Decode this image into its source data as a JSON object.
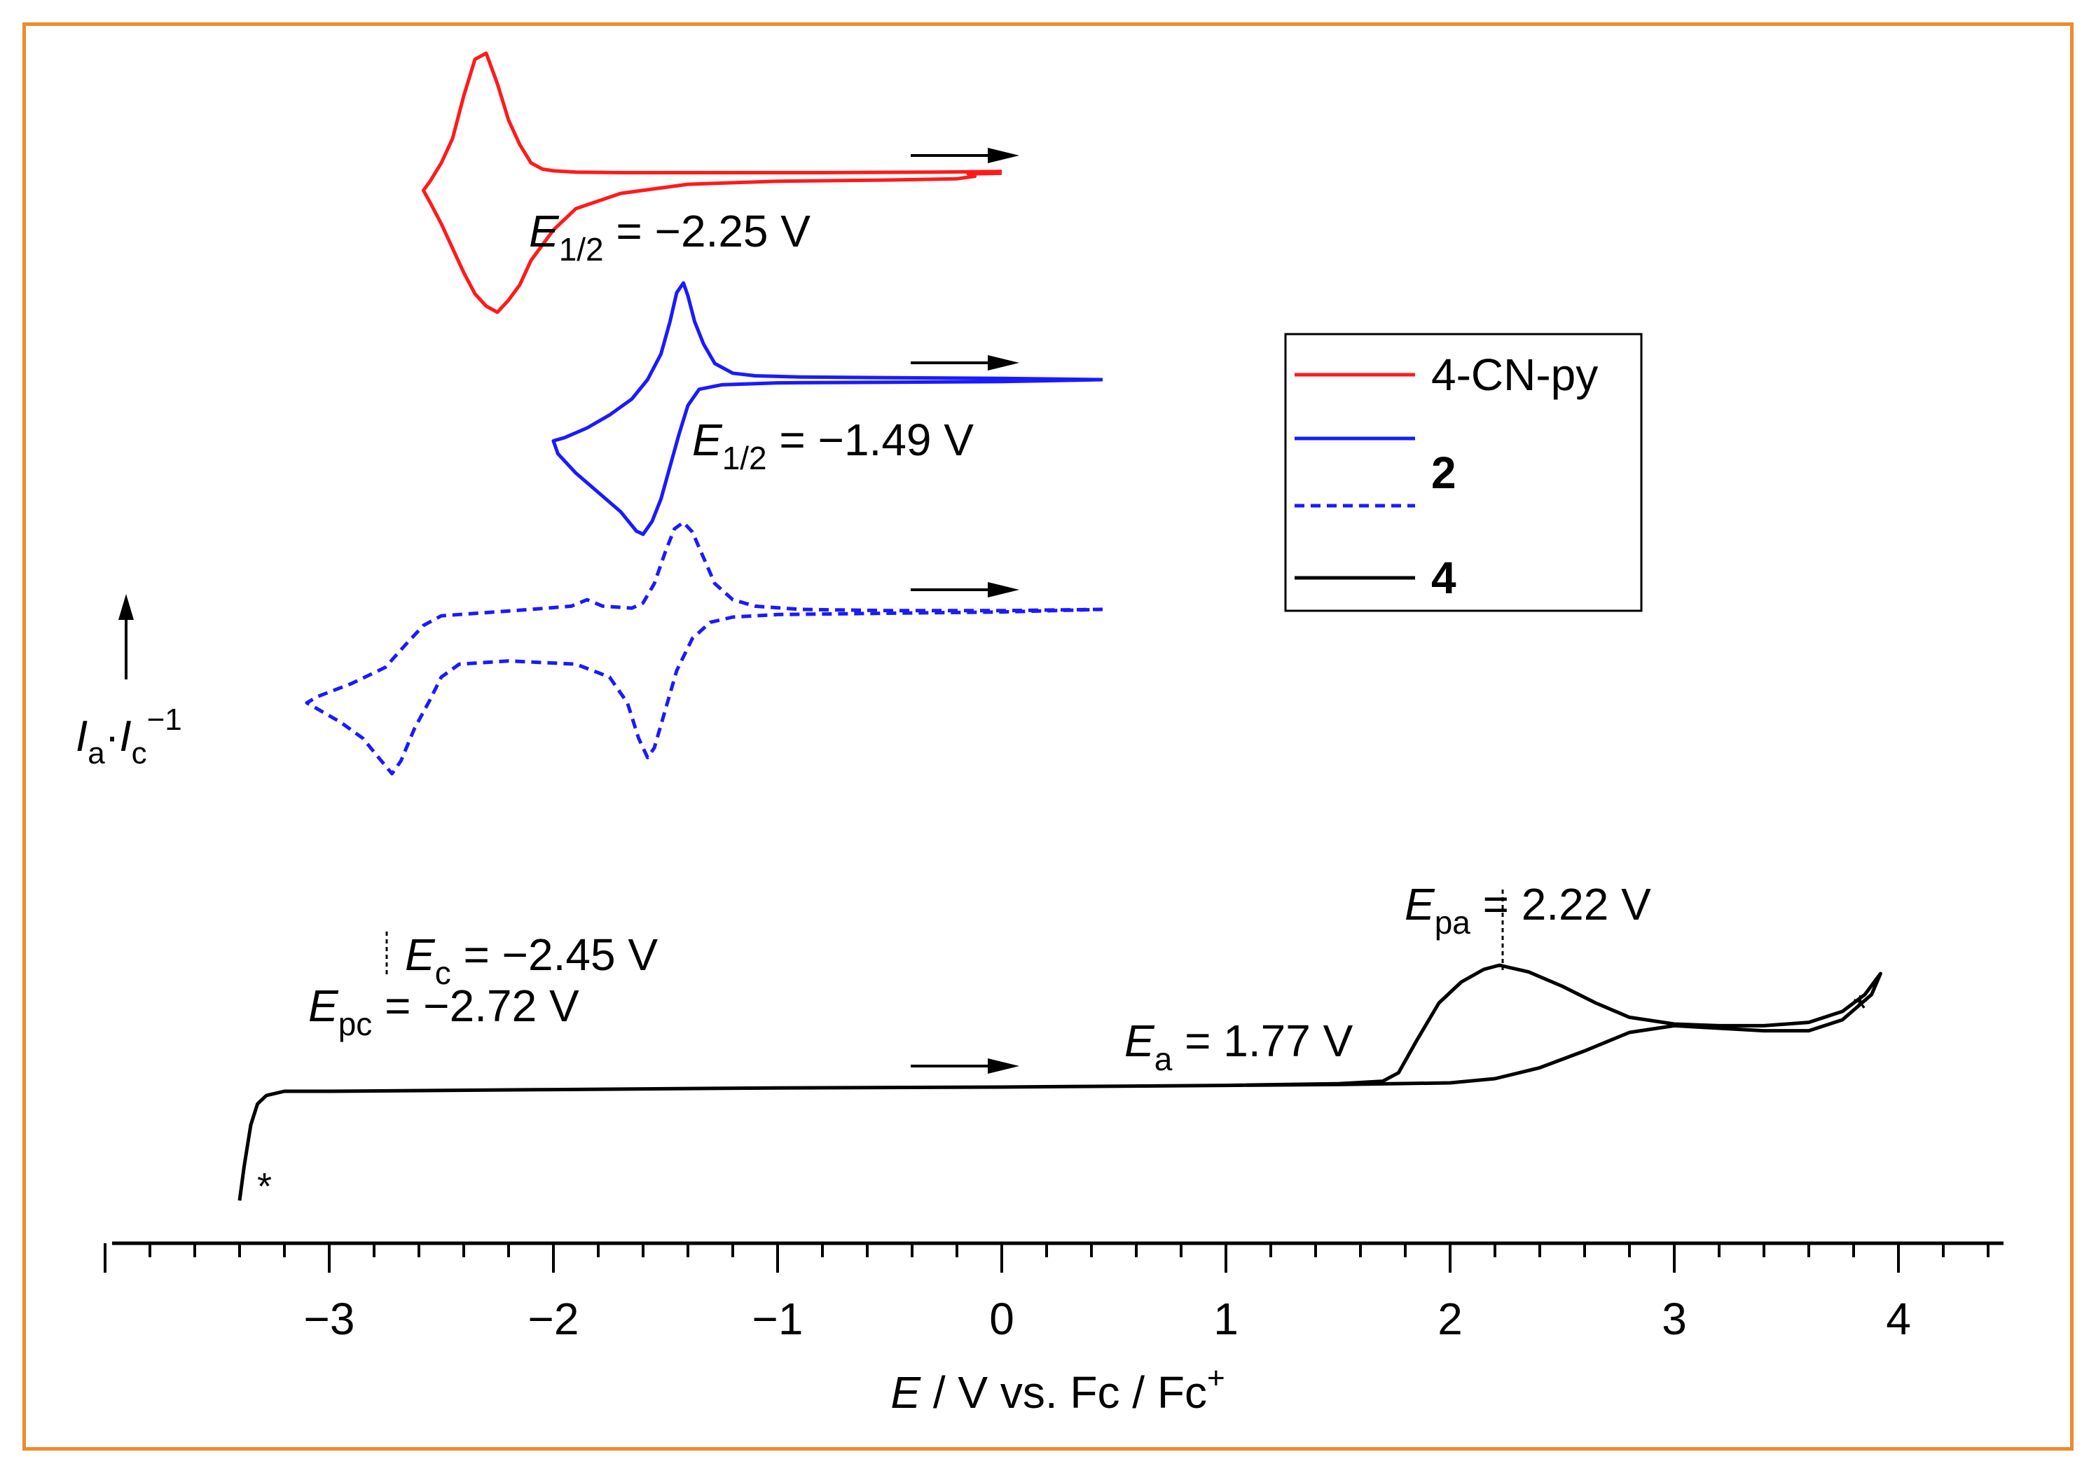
{
  "chart_data": {
    "type": "line",
    "title": "",
    "xlabel": {
      "italic": "E",
      "rest": " / V vs. Fc / Fc",
      "sup": "+"
    },
    "ylabel": {
      "i1": "I",
      "s1": "a",
      "dot": "·",
      "i2": "I",
      "s2": "c",
      "sup": "−1"
    },
    "xlim": [
      -4.0,
      4.5
    ],
    "xticks": [
      "−3",
      "−2",
      "−1",
      "0",
      "1",
      "2",
      "3",
      "4"
    ],
    "xtick_values": [
      -3,
      -2,
      -1,
      0,
      1,
      2,
      3,
      4
    ],
    "legend_position": "top-right",
    "legend": [
      {
        "label": "4-CN-py",
        "color": "#ff1a1a",
        "dash": false,
        "bold": false
      },
      {
        "label": "",
        "color": "#1a1aff",
        "dash": false,
        "bold": false
      },
      {
        "label": "2",
        "color": "#1a1aff",
        "dash": true,
        "bold": true,
        "group": true
      },
      {
        "label": "4",
        "color": "#000000",
        "dash": false,
        "bold": true
      }
    ],
    "series": [
      {
        "name": "4-CN-py",
        "color": "#ff1a1a",
        "dash": false,
        "points": [
          [
            0.0,
            0.06
          ],
          [
            -0.3,
            0.05
          ],
          [
            -0.8,
            0.04
          ],
          [
            -1.3,
            0.04
          ],
          [
            -1.7,
            0.04
          ],
          [
            -1.9,
            0.05
          ],
          [
            -2.0,
            0.07
          ],
          [
            -2.05,
            0.1
          ],
          [
            -2.1,
            0.2
          ],
          [
            -2.15,
            0.5
          ],
          [
            -2.2,
            0.9
          ],
          [
            -2.25,
            1.5
          ],
          [
            -2.3,
            2.0
          ],
          [
            -2.35,
            1.9
          ],
          [
            -2.4,
            1.3
          ],
          [
            -2.45,
            0.6
          ],
          [
            -2.5,
            0.2
          ],
          [
            -2.55,
            -0.1
          ],
          [
            -2.58,
            -0.25
          ],
          [
            -2.55,
            -0.45
          ],
          [
            -2.5,
            -0.8
          ],
          [
            -2.45,
            -1.2
          ],
          [
            -2.4,
            -1.6
          ],
          [
            -2.35,
            -1.95
          ],
          [
            -2.3,
            -2.15
          ],
          [
            -2.25,
            -2.25
          ],
          [
            -2.2,
            -2.05
          ],
          [
            -2.15,
            -1.8
          ],
          [
            -2.1,
            -1.4
          ],
          [
            -2.0,
            -0.9
          ],
          [
            -1.9,
            -0.55
          ],
          [
            -1.7,
            -0.3
          ],
          [
            -1.4,
            -0.15
          ],
          [
            -1.0,
            -0.1
          ],
          [
            -0.5,
            -0.08
          ],
          [
            -0.2,
            -0.06
          ],
          [
            -0.12,
            -0.02
          ],
          [
            -0.15,
            0.02
          ],
          [
            0.0,
            0.03
          ]
        ]
      },
      {
        "name": "2",
        "color": "#1a1aff",
        "dash": false,
        "points": [
          [
            0.45,
            0.0
          ],
          [
            0.0,
            0.02
          ],
          [
            -0.5,
            0.03
          ],
          [
            -0.9,
            0.04
          ],
          [
            -1.1,
            0.06
          ],
          [
            -1.2,
            0.1
          ],
          [
            -1.28,
            0.25
          ],
          [
            -1.33,
            0.55
          ],
          [
            -1.37,
            0.9
          ],
          [
            -1.4,
            1.3
          ],
          [
            -1.42,
            1.5
          ],
          [
            -1.45,
            1.35
          ],
          [
            -1.48,
            0.9
          ],
          [
            -1.52,
            0.4
          ],
          [
            -1.58,
            0.0
          ],
          [
            -1.65,
            -0.3
          ],
          [
            -1.75,
            -0.55
          ],
          [
            -1.85,
            -0.75
          ],
          [
            -1.95,
            -0.9
          ],
          [
            -2.0,
            -0.95
          ],
          [
            -1.98,
            -1.15
          ],
          [
            -1.9,
            -1.45
          ],
          [
            -1.8,
            -1.75
          ],
          [
            -1.7,
            -2.05
          ],
          [
            -1.63,
            -2.35
          ],
          [
            -1.6,
            -2.4
          ],
          [
            -1.56,
            -2.2
          ],
          [
            -1.52,
            -1.85
          ],
          [
            -1.48,
            -1.35
          ],
          [
            -1.44,
            -0.85
          ],
          [
            -1.4,
            -0.4
          ],
          [
            -1.35,
            -0.15
          ],
          [
            -1.25,
            -0.08
          ],
          [
            -1.0,
            -0.05
          ],
          [
            -0.5,
            -0.04
          ],
          [
            0.0,
            -0.03
          ],
          [
            0.45,
            0.0
          ]
        ]
      },
      {
        "name": "2",
        "color": "#1a1aff",
        "dash": true,
        "points": [
          [
            0.45,
            0.0
          ],
          [
            0.0,
            -0.02
          ],
          [
            -0.5,
            -0.02
          ],
          [
            -0.9,
            0.0
          ],
          [
            -1.1,
            0.05
          ],
          [
            -1.2,
            0.15
          ],
          [
            -1.28,
            0.4
          ],
          [
            -1.33,
            0.8
          ],
          [
            -1.38,
            1.2
          ],
          [
            -1.42,
            1.35
          ],
          [
            -1.46,
            1.25
          ],
          [
            -1.5,
            0.9
          ],
          [
            -1.55,
            0.4
          ],
          [
            -1.6,
            0.1
          ],
          [
            -1.65,
            0.02
          ],
          [
            -1.78,
            0.05
          ],
          [
            -1.85,
            0.15
          ],
          [
            -1.92,
            0.05
          ],
          [
            -2.1,
            0.0
          ],
          [
            -2.3,
            -0.05
          ],
          [
            -2.5,
            -0.1
          ],
          [
            -2.58,
            -0.25
          ],
          [
            -2.66,
            -0.55
          ],
          [
            -2.75,
            -0.9
          ],
          [
            -2.9,
            -1.15
          ],
          [
            -3.05,
            -1.35
          ],
          [
            -3.1,
            -1.45
          ],
          [
            -3.05,
            -1.55
          ],
          [
            -2.95,
            -1.75
          ],
          [
            -2.85,
            -2.0
          ],
          [
            -2.78,
            -2.3
          ],
          [
            -2.72,
            -2.55
          ],
          [
            -2.68,
            -2.35
          ],
          [
            -2.62,
            -1.85
          ],
          [
            -2.55,
            -1.4
          ],
          [
            -2.5,
            -1.05
          ],
          [
            -2.42,
            -0.85
          ],
          [
            -2.2,
            -0.8
          ],
          [
            -1.9,
            -0.85
          ],
          [
            -1.75,
            -1.05
          ],
          [
            -1.67,
            -1.45
          ],
          [
            -1.62,
            -2.0
          ],
          [
            -1.58,
            -2.3
          ],
          [
            -1.55,
            -2.15
          ],
          [
            -1.5,
            -1.55
          ],
          [
            -1.45,
            -0.95
          ],
          [
            -1.38,
            -0.45
          ],
          [
            -1.3,
            -0.2
          ],
          [
            -1.2,
            -0.12
          ],
          [
            -1.0,
            -0.08
          ],
          [
            -0.5,
            -0.06
          ],
          [
            0.0,
            -0.04
          ],
          [
            0.45,
            0.0
          ]
        ]
      },
      {
        "name": "4",
        "color": "#000000",
        "dash": false,
        "points": [
          [
            -3.4,
            -1.3
          ],
          [
            -3.38,
            -0.9
          ],
          [
            -3.35,
            -0.4
          ],
          [
            -3.32,
            -0.15
          ],
          [
            -3.28,
            -0.05
          ],
          [
            -3.2,
            0.0
          ],
          [
            -3.0,
            0.0
          ],
          [
            -2.0,
            0.02
          ],
          [
            -1.0,
            0.04
          ],
          [
            0.0,
            0.05
          ],
          [
            1.0,
            0.07
          ],
          [
            1.5,
            0.09
          ],
          [
            1.7,
            0.12
          ],
          [
            1.77,
            0.22
          ],
          [
            1.85,
            0.6
          ],
          [
            1.95,
            1.05
          ],
          [
            2.05,
            1.3
          ],
          [
            2.15,
            1.45
          ],
          [
            2.22,
            1.5
          ],
          [
            2.35,
            1.42
          ],
          [
            2.5,
            1.25
          ],
          [
            2.65,
            1.05
          ],
          [
            2.8,
            0.88
          ],
          [
            3.0,
            0.8
          ],
          [
            3.2,
            0.78
          ],
          [
            3.4,
            0.78
          ],
          [
            3.6,
            0.82
          ],
          [
            3.75,
            0.95
          ],
          [
            3.85,
            1.15
          ],
          [
            3.92,
            1.4
          ],
          [
            3.88,
            1.15
          ],
          [
            3.75,
            0.85
          ],
          [
            3.6,
            0.72
          ],
          [
            3.4,
            0.72
          ],
          [
            3.2,
            0.75
          ],
          [
            3.0,
            0.78
          ],
          [
            2.8,
            0.7
          ],
          [
            2.6,
            0.48
          ],
          [
            2.4,
            0.28
          ],
          [
            2.2,
            0.15
          ],
          [
            2.0,
            0.1
          ],
          [
            1.5,
            0.08
          ],
          [
            1.0,
            0.07
          ]
        ]
      }
    ],
    "annotations": [
      {
        "italic": "E",
        "sub": "1/2",
        "rest": " = −2.25 V"
      },
      {
        "italic": "E",
        "sub": "1/2",
        "rest": " = −1.49 V"
      },
      {
        "italic": "E",
        "sub": "c",
        "rest": " = −2.45 V"
      },
      {
        "italic": "E",
        "sub": "pc",
        "rest": " = −2.72 V"
      },
      {
        "italic": "E",
        "sub": "pa",
        "rest": " = 2.22 V"
      },
      {
        "italic": "E",
        "sub": "a",
        "rest": " = 1.77 V"
      },
      {
        "text": "*"
      },
      {
        "text": "*"
      }
    ]
  }
}
